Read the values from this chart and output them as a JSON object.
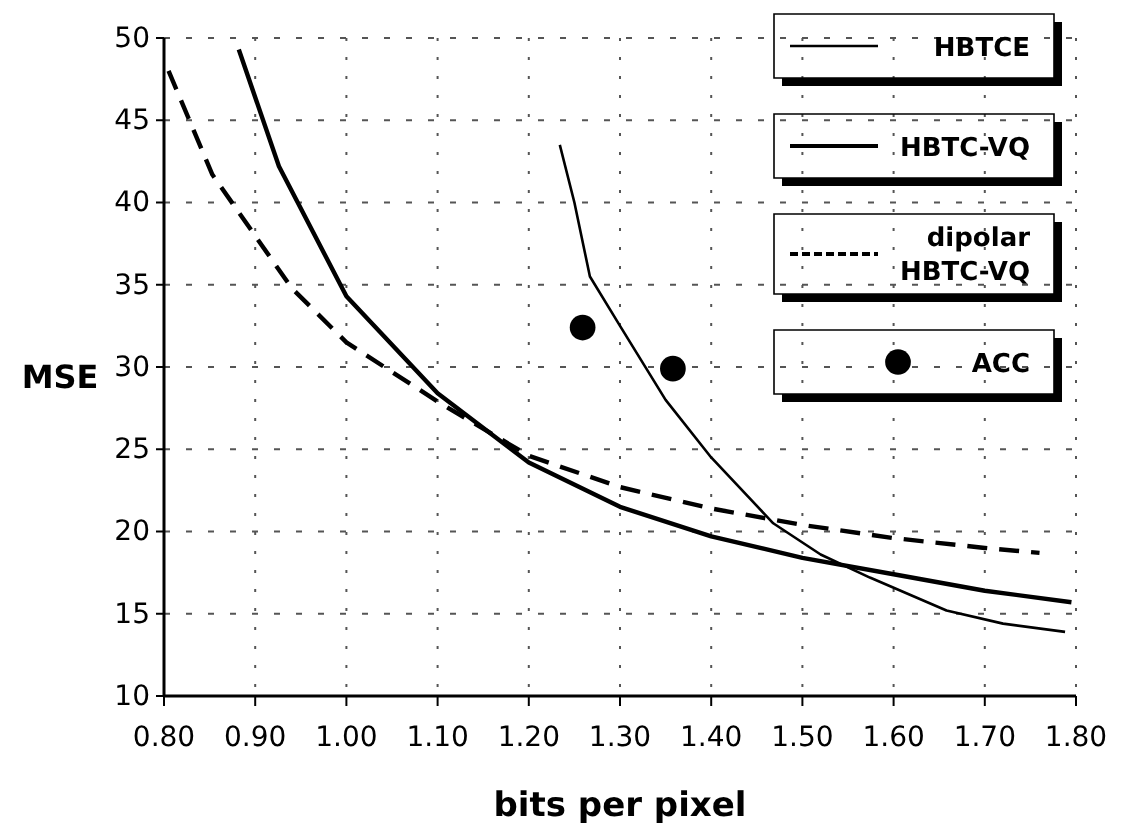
{
  "chart_data": {
    "type": "line",
    "xlabel": "bits per pixel",
    "ylabel": "MSE",
    "xlim": [
      0.8,
      1.8
    ],
    "xticks": [
      {
        "value": 0.8,
        "label": "0.80"
      },
      {
        "value": 0.9,
        "label": "0.90"
      },
      {
        "value": 1.0,
        "label": "1.00"
      },
      {
        "value": 1.1,
        "label": "1.10"
      },
      {
        "value": 1.2,
        "label": "1.20"
      },
      {
        "value": 1.3,
        "label": "1.30"
      },
      {
        "value": 1.4,
        "label": "1.40"
      },
      {
        "value": 1.5,
        "label": "1.50"
      },
      {
        "value": 1.6,
        "label": "1.60"
      },
      {
        "value": 1.7,
        "label": "1.70"
      },
      {
        "value": 1.8,
        "label": "1.80"
      }
    ],
    "ylim": [
      10,
      50
    ],
    "yticks": [
      10,
      15,
      20,
      25,
      30,
      35,
      40,
      45,
      50
    ],
    "grid": true,
    "legend": "top right",
    "series": [
      {
        "name": "HBTCE",
        "color": "#000000",
        "line_style": "solid",
        "x": [
          1.234,
          1.25,
          1.267,
          1.3,
          1.35,
          1.4,
          1.468,
          1.52,
          1.574,
          1.658,
          1.72,
          1.788
        ],
        "values": [
          43.5,
          40,
          35.5,
          32.5,
          28,
          24.5,
          20.5,
          18.6,
          17.2,
          15.2,
          14.4,
          13.9
        ]
      },
      {
        "name": "HBTC-VQ",
        "color": "#000000",
        "line_style": "solid",
        "x": [
          0.882,
          0.926,
          1.0,
          1.1,
          1.2,
          1.3,
          1.4,
          1.5,
          1.6,
          1.7,
          1.795
        ],
        "values": [
          49.3,
          42.2,
          34.3,
          28.4,
          24.2,
          21.5,
          19.7,
          18.4,
          17.4,
          16.4,
          15.7
        ]
      },
      {
        "name": "dipolar HBTC-VQ",
        "color": "#000000",
        "line_style": "dashed",
        "x": [
          0.805,
          0.853,
          0.94,
          1.0,
          1.1,
          1.2,
          1.3,
          1.4,
          1.5,
          1.6,
          1.7,
          1.76
        ],
        "values": [
          48,
          41.7,
          34.8,
          31.5,
          27.9,
          24.6,
          22.7,
          21.4,
          20.4,
          19.6,
          19,
          18.7
        ]
      },
      {
        "name": "ACC",
        "type": "scatter",
        "marker": "circle",
        "color": "#000000",
        "x": [
          1.259,
          1.358
        ],
        "values": [
          32.4,
          29.9
        ]
      }
    ]
  }
}
